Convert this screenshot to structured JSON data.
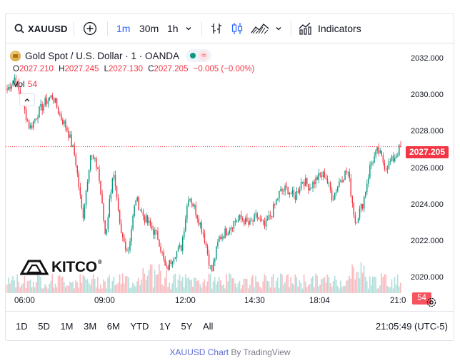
{
  "toolbar": {
    "symbol": "XAUUSD",
    "intervals": [
      "1m",
      "30m",
      "1h"
    ],
    "active_interval": "1m",
    "indicators_label": "Indicators"
  },
  "legend": {
    "title": "Gold Spot / U.S. Dollar · 1 · OANDA",
    "o_key": "O",
    "o_val": "2027.210",
    "h_key": "H",
    "h_val": "2027.245",
    "l_key": "L",
    "l_val": "2027.130",
    "c_key": "C",
    "c_val": "2027.205",
    "change": "−0.005 (−0.00%)",
    "vol_label": "Vol",
    "vol_val": "54"
  },
  "price_axis": {
    "ticks": [
      "2032.000",
      "2030.000",
      "2028.000",
      "2026.000",
      "2024.000",
      "2022.000",
      "2020.000"
    ],
    "last_price": "2027.205",
    "last_volume": "54"
  },
  "time_axis": {
    "ticks": [
      "06:00",
      "09:00",
      "12:00",
      "14:30",
      "18:04",
      "21:0"
    ]
  },
  "ranges": [
    "1D",
    "5D",
    "1M",
    "3M",
    "6M",
    "YTD",
    "1Y",
    "5Y",
    "All"
  ],
  "clock": "21:05:49 (UTC-5)",
  "brand": "KITCO",
  "brand_mark": "®",
  "credit": {
    "link": "XAUUSD Chart",
    "by": " By TradingView"
  },
  "colors": {
    "up": "#089981",
    "down": "#f23645",
    "accent": "#2962ff",
    "volume_up": "#b2dfdb",
    "volume_down": "#f8bbc0"
  },
  "chart_data": {
    "type": "candlestick",
    "x": [
      "06:00",
      "09:00",
      "12:00",
      "14:30",
      "18:04",
      "21:0"
    ],
    "close_path": [
      2030.3,
      2031.0,
      2029.6,
      2028.2,
      2029.0,
      2029.6,
      2030.0,
      2028.9,
      2028.1,
      2026.6,
      2023.3,
      2026.8,
      2026.0,
      2022.3,
      2025.9,
      2022.4,
      2021.5,
      2024.4,
      2023.4,
      2022.8,
      2022.2,
      2020.4,
      2021.3,
      2021.7,
      2024.6,
      2023.6,
      2022.4,
      2020.3,
      2022.2,
      2022.6,
      2023.1,
      2023.3,
      2022.9,
      2023.4,
      2022.8,
      2023.6,
      2024.7,
      2024.9,
      2024.4,
      2025.4,
      2025.0,
      2025.5,
      2025.7,
      2024.4,
      2025.4,
      2025.9,
      2023.1,
      2024.1,
      2026.2,
      2027.0,
      2026.1,
      2026.5,
      2027.2
    ],
    "ylim": [
      2019.2,
      2032.8
    ]
  }
}
